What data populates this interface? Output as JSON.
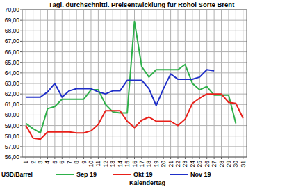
{
  "chart_data": {
    "type": "line",
    "title": "Tägl. durchschnittl. Preisentwicklung für Rohöl Sorte Brent",
    "x_label": "Kalendertag",
    "y_label": "USD/Barrel",
    "x": [
      1,
      2,
      3,
      4,
      5,
      6,
      7,
      8,
      9,
      10,
      11,
      12,
      13,
      14,
      15,
      16,
      17,
      18,
      19,
      20,
      21,
      22,
      23,
      24,
      25,
      26,
      27,
      28,
      29,
      30,
      31
    ],
    "xlim": [
      0.5,
      31.5
    ],
    "xticks": [
      1,
      2,
      3,
      4,
      5,
      6,
      7,
      8,
      9,
      10,
      11,
      12,
      13,
      14,
      15,
      16,
      17,
      18,
      19,
      20,
      21,
      22,
      23,
      24,
      25,
      26,
      27,
      28,
      29,
      30,
      31
    ],
    "ylim": [
      56,
      70
    ],
    "yticks": [
      {
        "value": 56,
        "label": "56,00"
      },
      {
        "value": 57,
        "label": "57,00"
      },
      {
        "value": 58,
        "label": "58,00"
      },
      {
        "value": 59,
        "label": "59,00"
      },
      {
        "value": 60,
        "label": "60,00"
      },
      {
        "value": 61,
        "label": "61,00"
      },
      {
        "value": 62,
        "label": "62,00"
      },
      {
        "value": 63,
        "label": "63,00"
      },
      {
        "value": 64,
        "label": "64,00"
      },
      {
        "value": 65,
        "label": "65,00"
      },
      {
        "value": 66,
        "label": "66,00"
      },
      {
        "value": 67,
        "label": "67,00"
      },
      {
        "value": 68,
        "label": "68,00"
      },
      {
        "value": 69,
        "label": "69,00"
      },
      {
        "value": 70,
        "label": "70,00"
      }
    ],
    "grid": true,
    "legend": "bottom",
    "series": [
      {
        "name": "Sep 19",
        "color": "#2eb04a",
        "values": [
          59.2,
          58.7,
          58.3,
          60.6,
          60.8,
          61.5,
          61.5,
          61.5,
          61.5,
          62.4,
          62.4,
          61.0,
          60.3,
          60.2,
          60.2,
          68.9,
          64.6,
          63.6,
          64.3,
          64.3,
          64.3,
          64.3,
          64.8,
          63.0,
          62.4,
          62.7,
          61.9,
          61.9,
          61.9,
          59.2,
          null
        ]
      },
      {
        "name": "Okt 19",
        "color": "#e8201a",
        "values": [
          59.0,
          57.8,
          57.7,
          58.4,
          58.4,
          58.4,
          58.4,
          58.3,
          58.3,
          58.5,
          59.1,
          60.4,
          60.4,
          60.4,
          59.4,
          58.8,
          59.5,
          59.8,
          59.4,
          59.4,
          59.4,
          59.0,
          59.6,
          61.1,
          61.6,
          62.0,
          62.0,
          62.0,
          61.2,
          61.1,
          59.7
        ]
      },
      {
        "name": "Nov 19",
        "color": "#1f2fc8",
        "values": [
          61.7,
          61.7,
          61.7,
          62.2,
          63.0,
          61.7,
          62.3,
          62.5,
          62.5,
          62.5,
          62.2,
          62.0,
          62.3,
          62.3,
          63.3,
          63.3,
          63.3,
          62.5,
          60.9,
          62.5,
          63.9,
          63.4,
          63.4,
          63.4,
          63.6,
          64.3,
          64.2,
          null,
          null,
          null,
          null
        ]
      }
    ]
  }
}
